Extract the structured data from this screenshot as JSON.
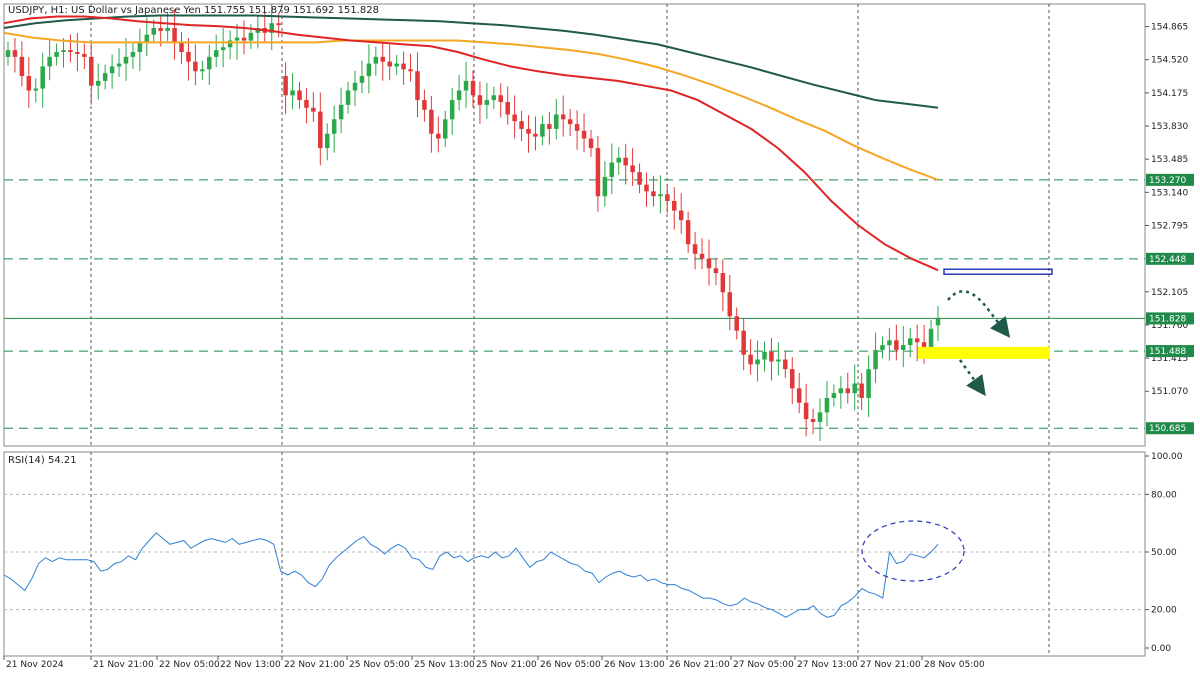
{
  "header": {
    "symbol": "USDJPY, H1:  US Dollar vs Japanese Yen  151.755 151.879 151.692 151.828"
  },
  "colors": {
    "bull": "#2aa84a",
    "bear": "#e03838",
    "ma_red": "#e02424",
    "ma_orange": "#f5a623",
    "ma_green": "#1f5a4a",
    "level": "#1f8a4a",
    "rsi": "#2f7fd6",
    "highlight": "#ffff00",
    "resistance_box": "#2a3ab8",
    "annotation": "#2a3ab8",
    "arrow": "#1f5a4a"
  },
  "chart_data": [
    {
      "type": "candlestick",
      "title": "USDJPY, H1:  US Dollar vs Japanese Yen",
      "ohlc_last": {
        "open": 151.755,
        "high": 151.879,
        "low": 151.692,
        "close": 151.828
      },
      "ylim": [
        150.5,
        155.1
      ],
      "price_ticks": [
        "154.865",
        "154.520",
        "154.175",
        "153.830",
        "153.485",
        "153.140",
        "152.795",
        "152.105",
        "151.760",
        "151.415",
        "151.070"
      ],
      "time_ticks": [
        "21 Nov 2024",
        "21 Nov 21:00",
        "22 Nov 05:00",
        "22 Nov 13:00",
        "22 Nov 21:00",
        "25 Nov 05:00",
        "25 Nov 13:00",
        "25 Nov 21:00",
        "26 Nov 05:00",
        "26 Nov 13:00",
        "26 Nov 21:00",
        "27 Nov 05:00",
        "27 Nov 13:00",
        "27 Nov 21:00",
        "28 Nov 05:00"
      ],
      "levels": [
        {
          "value": 153.27,
          "label": "153.270",
          "style": "dashed"
        },
        {
          "value": 152.448,
          "label": "152.448",
          "style": "dashed"
        },
        {
          "value": 151.828,
          "label": "151.828",
          "style": "solid"
        },
        {
          "value": 151.488,
          "label": "151.488",
          "style": "dashed"
        },
        {
          "value": 150.685,
          "label": "150.685",
          "style": "dashed"
        }
      ],
      "candles_close": [
        154.62,
        154.55,
        154.35,
        154.2,
        154.22,
        154.45,
        154.55,
        154.6,
        154.62,
        154.6,
        154.58,
        154.55,
        154.25,
        154.3,
        154.38,
        154.45,
        154.48,
        154.55,
        154.6,
        154.7,
        154.78,
        154.85,
        154.82,
        154.85,
        154.7,
        154.6,
        154.5,
        154.4,
        154.42,
        154.55,
        154.62,
        154.65,
        154.72,
        154.75,
        154.72,
        154.8,
        154.85,
        154.8,
        154.9,
        154.88,
        154.15,
        154.2,
        154.1,
        154.02,
        153.98,
        153.6,
        153.75,
        153.9,
        154.05,
        154.2,
        154.28,
        154.35,
        154.48,
        154.55,
        154.5,
        154.45,
        154.48,
        154.42,
        154.4,
        154.1,
        154.0,
        153.75,
        153.7,
        153.9,
        154.1,
        154.2,
        154.3,
        154.15,
        154.05,
        154.1,
        154.15,
        154.08,
        153.95,
        153.88,
        153.8,
        153.75,
        153.72,
        153.85,
        153.8,
        153.95,
        153.9,
        153.85,
        153.78,
        153.7,
        153.6,
        153.1,
        153.3,
        153.45,
        153.5,
        153.42,
        153.35,
        153.22,
        153.15,
        153.1,
        153.12,
        153.05,
        152.95,
        152.85,
        152.6,
        152.5,
        152.45,
        152.35,
        152.3,
        152.1,
        151.85,
        151.7,
        151.45,
        151.35,
        151.4,
        151.48,
        151.38,
        151.4,
        151.3,
        151.1,
        150.95,
        150.78,
        150.75,
        150.85,
        151.0,
        151.05,
        151.1,
        151.05,
        151.15,
        151.0,
        151.3,
        151.5,
        151.55,
        151.6,
        151.5,
        151.55,
        151.62,
        151.58,
        151.5,
        151.72,
        151.83
      ],
      "candles_open": [
        154.55,
        154.62,
        154.55,
        154.35,
        154.2,
        154.22,
        154.45,
        154.55,
        154.6,
        154.62,
        154.6,
        154.58,
        154.55,
        154.25,
        154.3,
        154.38,
        154.45,
        154.48,
        154.55,
        154.6,
        154.7,
        154.78,
        154.85,
        154.82,
        154.85,
        154.7,
        154.6,
        154.5,
        154.4,
        154.42,
        154.55,
        154.62,
        154.65,
        154.72,
        154.75,
        154.72,
        154.8,
        154.85,
        154.8,
        154.9,
        154.35,
        154.15,
        154.2,
        154.1,
        154.02,
        153.98,
        153.6,
        153.75,
        153.9,
        154.05,
        154.2,
        154.28,
        154.35,
        154.48,
        154.55,
        154.5,
        154.45,
        154.48,
        154.42,
        154.4,
        154.1,
        154.0,
        153.75,
        153.7,
        153.9,
        154.1,
        154.2,
        154.3,
        154.15,
        154.05,
        154.1,
        154.15,
        154.08,
        153.95,
        153.88,
        153.8,
        153.75,
        153.72,
        153.85,
        153.8,
        153.95,
        153.9,
        153.85,
        153.78,
        153.7,
        153.6,
        153.1,
        153.3,
        153.45,
        153.5,
        153.42,
        153.35,
        153.22,
        153.15,
        153.1,
        153.12,
        153.05,
        152.95,
        152.85,
        152.6,
        152.5,
        152.45,
        152.35,
        152.3,
        152.1,
        151.85,
        151.7,
        151.45,
        151.35,
        151.4,
        151.48,
        151.38,
        151.4,
        151.3,
        151.1,
        150.95,
        150.78,
        150.75,
        150.85,
        151.0,
        151.05,
        151.1,
        151.05,
        151.15,
        151.0,
        151.3,
        151.5,
        151.55,
        151.6,
        151.5,
        151.55,
        151.62,
        151.58,
        151.5,
        151.755
      ],
      "ma_red": [
        154.9,
        154.95,
        154.97,
        154.97,
        154.95,
        154.92,
        154.9,
        154.88,
        154.87,
        154.85,
        154.82,
        154.78,
        154.75,
        154.72,
        154.7,
        154.68,
        154.66,
        154.6,
        154.52,
        154.45,
        154.4,
        154.36,
        154.33,
        154.3,
        154.25,
        154.2,
        154.1,
        153.95,
        153.8,
        153.6,
        153.35,
        153.05,
        152.8,
        152.6,
        152.45,
        152.33
      ],
      "ma_orange": [
        154.8,
        154.75,
        154.72,
        154.7,
        154.7,
        154.7,
        154.7,
        154.7,
        154.7,
        154.7,
        154.7,
        154.7,
        154.72,
        154.72,
        154.72,
        154.72,
        154.72,
        154.7,
        154.68,
        154.65,
        154.62,
        154.58,
        154.52,
        154.45,
        154.36,
        154.26,
        154.15,
        154.03,
        153.9,
        153.78,
        153.63,
        153.5,
        153.38,
        153.27
      ],
      "ma_green": [
        154.85,
        154.9,
        154.93,
        154.95,
        154.97,
        154.98,
        154.98,
        154.98,
        154.98,
        154.97,
        154.96,
        154.95,
        154.94,
        154.93,
        154.92,
        154.9,
        154.88,
        154.85,
        154.82,
        154.78,
        154.73,
        154.68,
        154.6,
        154.52,
        154.44,
        154.35,
        154.26,
        154.18,
        154.1,
        154.06,
        154.02
      ]
    },
    {
      "type": "line",
      "title": "RSI(14) 54.21",
      "name": "RSI(14)",
      "ylim": [
        0,
        100
      ],
      "ticks": [
        "100.00",
        "80.00",
        "50.00",
        "20.00",
        "0.00"
      ],
      "last_value": 54.21,
      "values": [
        38,
        36,
        33,
        30,
        36,
        44,
        47,
        45,
        47,
        46,
        46,
        46,
        46,
        45,
        40,
        41,
        44,
        45,
        48,
        46,
        52,
        56,
        60,
        57,
        54,
        55,
        56,
        52,
        54,
        56,
        57,
        56,
        55,
        57,
        54,
        55,
        56,
        57,
        56,
        54,
        40,
        38,
        40,
        38,
        34,
        32,
        36,
        43,
        47,
        50,
        53,
        56,
        58,
        54,
        52,
        49,
        52,
        54,
        52,
        47,
        46,
        42,
        41,
        48,
        50,
        47,
        48,
        45,
        47,
        48,
        47,
        50,
        47,
        48,
        52,
        47,
        42,
        45,
        46,
        50,
        48,
        46,
        44,
        43,
        40,
        39,
        34,
        37,
        39,
        40,
        38,
        37,
        38,
        35,
        36,
        34,
        33,
        33,
        31,
        30,
        28,
        26,
        26,
        25,
        23,
        22,
        23,
        26,
        24,
        23,
        21,
        20,
        18,
        16,
        18,
        20,
        20,
        22,
        18,
        16,
        17,
        22,
        24,
        27,
        31,
        29,
        28,
        26,
        50,
        44,
        45,
        49,
        48,
        47,
        50,
        54
      ]
    }
  ]
}
